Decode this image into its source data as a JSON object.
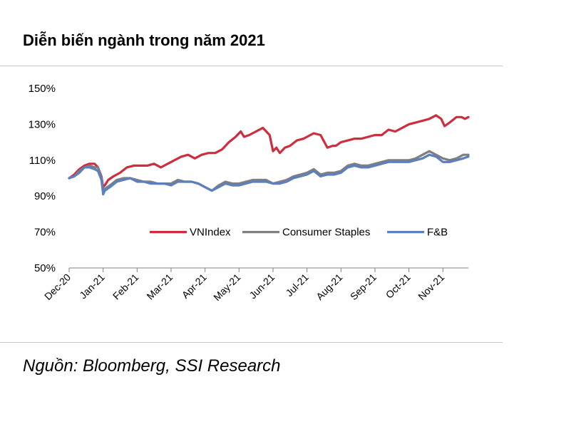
{
  "title": "Diễn biến ngành trong năm 2021",
  "source": "Nguồn: Bloomberg, SSI Research",
  "chart_data": {
    "type": "line",
    "title": "Diễn biến ngành trong năm 2021",
    "xlabel": "",
    "ylabel": "",
    "ylim": [
      50,
      150
    ],
    "yticks": [
      "50%",
      "70%",
      "90%",
      "110%",
      "130%",
      "150%"
    ],
    "ytick_values": [
      50,
      70,
      90,
      110,
      130,
      150
    ],
    "xticks": [
      "Dec-20",
      "Jan-21",
      "Feb-21",
      "Mar-21",
      "Apr-21",
      "May-21",
      "Jun-21",
      "Jul-21",
      "Aug-21",
      "Sep-21",
      "Oct-21",
      "Nov-21"
    ],
    "xlim": [
      0,
      11.75
    ],
    "legend_position": "inside-lower-center",
    "series": [
      {
        "name": "VNIndex",
        "color": "#cc2e3e",
        "x": [
          0,
          0.15,
          0.3,
          0.45,
          0.6,
          0.75,
          0.85,
          0.95,
          1.0,
          1.05,
          1.15,
          1.3,
          1.5,
          1.7,
          1.9,
          2.1,
          2.3,
          2.5,
          2.7,
          2.9,
          3.0,
          3.1,
          3.3,
          3.5,
          3.7,
          3.9,
          4.1,
          4.3,
          4.5,
          4.7,
          4.9,
          5.05,
          5.15,
          5.3,
          5.5,
          5.7,
          5.9,
          6.0,
          6.1,
          6.2,
          6.35,
          6.5,
          6.7,
          6.9,
          7.0,
          7.2,
          7.4,
          7.6,
          7.75,
          7.85,
          8.0,
          8.2,
          8.4,
          8.6,
          8.8,
          9.0,
          9.2,
          9.4,
          9.6,
          9.8,
          10.0,
          10.2,
          10.4,
          10.6,
          10.8,
          10.95,
          11.05,
          11.2,
          11.4,
          11.55,
          11.65,
          11.75
        ],
        "values": [
          100,
          102,
          105,
          107,
          108,
          108,
          106,
          101,
          95,
          96,
          99,
          101,
          103,
          106,
          107,
          107,
          107,
          108,
          106,
          108,
          109,
          110,
          112,
          113,
          111,
          113,
          114,
          114,
          116,
          120,
          123,
          126,
          123,
          124,
          126,
          128,
          124,
          115,
          117,
          114,
          117,
          118,
          121,
          122,
          123,
          125,
          124,
          117,
          118,
          118,
          120,
          121,
          122,
          122,
          123,
          124,
          124,
          127,
          126,
          128,
          130,
          131,
          132,
          133,
          135,
          133,
          129,
          131,
          134,
          134,
          133,
          134
        ]
      },
      {
        "name": "Consumer Staples",
        "color": "#7f7f7f",
        "x": [
          0,
          0.15,
          0.3,
          0.45,
          0.6,
          0.75,
          0.85,
          0.95,
          1.0,
          1.05,
          1.2,
          1.4,
          1.6,
          1.8,
          2.0,
          2.2,
          2.4,
          2.6,
          2.8,
          3.0,
          3.2,
          3.4,
          3.6,
          3.8,
          4.0,
          4.2,
          4.4,
          4.6,
          4.8,
          5.0,
          5.2,
          5.4,
          5.6,
          5.8,
          6.0,
          6.2,
          6.4,
          6.6,
          6.8,
          7.0,
          7.2,
          7.4,
          7.6,
          7.8,
          8.0,
          8.2,
          8.4,
          8.6,
          8.8,
          9.0,
          9.2,
          9.4,
          9.6,
          9.8,
          10.0,
          10.2,
          10.4,
          10.6,
          10.8,
          11.0,
          11.2,
          11.4,
          11.6,
          11.75
        ],
        "values": [
          100,
          101,
          104,
          106,
          107,
          106,
          106,
          100,
          93,
          94,
          96,
          99,
          100,
          100,
          99,
          98,
          98,
          97,
          97,
          97,
          99,
          98,
          98,
          97,
          95,
          93,
          96,
          98,
          97,
          97,
          98,
          99,
          99,
          99,
          97,
          98,
          99,
          101,
          102,
          103,
          105,
          102,
          103,
          103,
          104,
          107,
          108,
          107,
          107,
          108,
          109,
          110,
          110,
          110,
          110,
          111,
          113,
          115,
          113,
          111,
          110,
          111,
          113,
          113
        ]
      },
      {
        "name": "F&B",
        "color": "#5b7fbf",
        "x": [
          0,
          0.15,
          0.3,
          0.45,
          0.6,
          0.75,
          0.85,
          0.95,
          1.0,
          1.05,
          1.2,
          1.4,
          1.6,
          1.8,
          2.0,
          2.2,
          2.4,
          2.6,
          2.8,
          3.0,
          3.2,
          3.4,
          3.6,
          3.8,
          4.0,
          4.2,
          4.4,
          4.6,
          4.8,
          5.0,
          5.2,
          5.4,
          5.6,
          5.8,
          6.0,
          6.2,
          6.4,
          6.6,
          6.8,
          7.0,
          7.2,
          7.4,
          7.6,
          7.8,
          8.0,
          8.2,
          8.4,
          8.6,
          8.8,
          9.0,
          9.2,
          9.4,
          9.6,
          9.8,
          10.0,
          10.2,
          10.4,
          10.6,
          10.8,
          11.0,
          11.2,
          11.4,
          11.6,
          11.75
        ],
        "values": [
          100,
          101,
          103,
          106,
          106,
          105,
          104,
          99,
          91,
          93,
          95,
          98,
          99,
          100,
          98,
          98,
          97,
          97,
          97,
          96,
          98,
          98,
          98,
          97,
          95,
          93,
          95,
          97,
          96,
          96,
          97,
          98,
          98,
          98,
          97,
          97,
          98,
          100,
          101,
          102,
          104,
          101,
          102,
          102,
          103,
          106,
          107,
          106,
          106,
          107,
          108,
          109,
          109,
          109,
          109,
          110,
          111,
          113,
          112,
          109,
          109,
          110,
          111,
          112
        ]
      }
    ]
  }
}
